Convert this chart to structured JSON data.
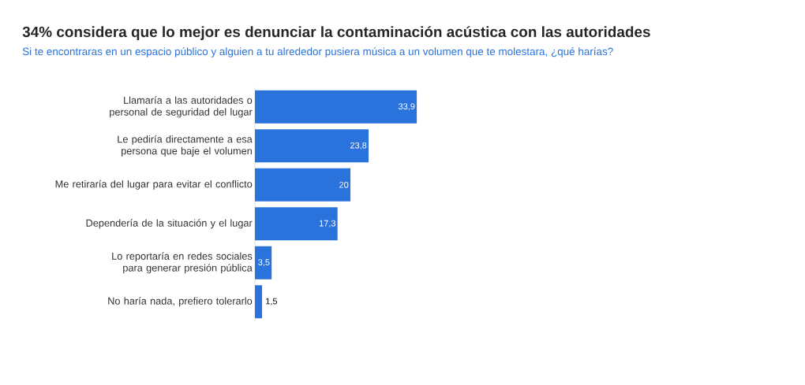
{
  "chart_data": {
    "type": "bar",
    "orientation": "horizontal",
    "title": "34% considera que lo mejor es denunciar la contaminación acústica con las autoridades",
    "subtitle": "Si te encontraras en un espacio público y alguien a tu alrededor pusiera música a un volumen que te molestara, ¿qué harías?",
    "categories": [
      "Llamaría a las autoridades o personal de seguridad del lugar",
      "Le pediría directamente a esa persona que baje el volumen",
      "Me retiraría del lugar para evitar el conflicto",
      "Dependería de la situación y el lugar",
      "Lo reportaría en redes sociales para generar presión pública",
      "No haría nada, prefiero tolerarlo"
    ],
    "values": [
      33.9,
      23.8,
      20,
      17.3,
      3.5,
      1.5
    ],
    "value_labels": [
      "33,9",
      "23,8",
      "20",
      "17,3",
      "3,5",
      "1,5"
    ],
    "color": "#2b73dc"
  }
}
